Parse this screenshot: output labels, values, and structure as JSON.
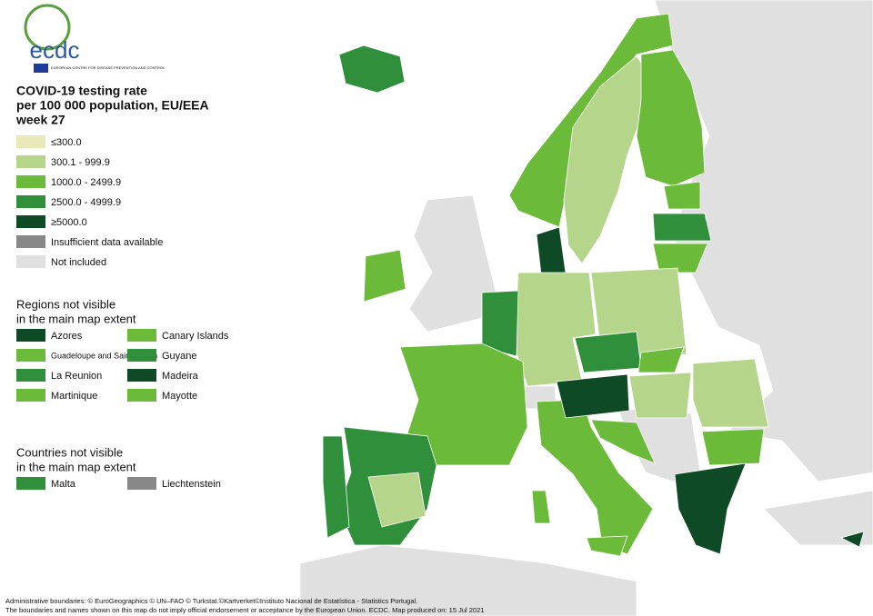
{
  "logo": {
    "name": "ecdc",
    "subtitle": "EUROPEAN CENTRE FOR DISEASE PREVENTION AND CONTROL"
  },
  "title": [
    "COVID-19 testing rate",
    "per 100 000 population, EU/EEA",
    "week 27"
  ],
  "legend": [
    {
      "label": "≤300.0",
      "color": "#e8e8b8"
    },
    {
      "label": "300.1 - 999.9",
      "color": "#b5d68a"
    },
    {
      "label": "1000.0 - 2499.9",
      "color": "#6cba3a"
    },
    {
      "label": "2500.0 - 4999.9",
      "color": "#2f8f3a"
    },
    {
      "label": "≥5000.0",
      "color": "#0f4a26"
    },
    {
      "label": "Insufficient data available",
      "color": "#888888"
    },
    {
      "label": "Not included",
      "color": "#e0e0e0"
    }
  ],
  "regions": {
    "title": [
      "Regions not visible",
      "in the main map extent"
    ],
    "items": [
      {
        "label": "Azores",
        "color": "#0f4a26"
      },
      {
        "label": "Guadeloupe and Saint Martin",
        "color": "#6cba3a"
      },
      {
        "label": "La Reunion",
        "color": "#2f8f3a"
      },
      {
        "label": "Martinique",
        "color": "#6cba3a"
      },
      {
        "label": "Canary Islands",
        "color": "#6cba3a"
      },
      {
        "label": "Guyane",
        "color": "#2f8f3a"
      },
      {
        "label": "Madeira",
        "color": "#0f4a26"
      },
      {
        "label": "Mayotte",
        "color": "#6cba3a"
      }
    ]
  },
  "countries": {
    "title": [
      "Countries not visible",
      "in the main map extent"
    ],
    "items": [
      {
        "label": "Malta",
        "color": "#2f8f3a"
      },
      {
        "label": "Liechtenstein",
        "color": "#888888"
      }
    ]
  },
  "footer": [
    "Administrative boundaries: © EuroGeographics © UN–FAO © Turkstat.©Kartverket©Instituto Nacional de Estatística - Statistics Portugal.",
    "The boundaries and names shown on this map do not imply official endorsement or acceptance by the European Union. ECDC. Map produced on: 15 Jul 2021"
  ]
}
